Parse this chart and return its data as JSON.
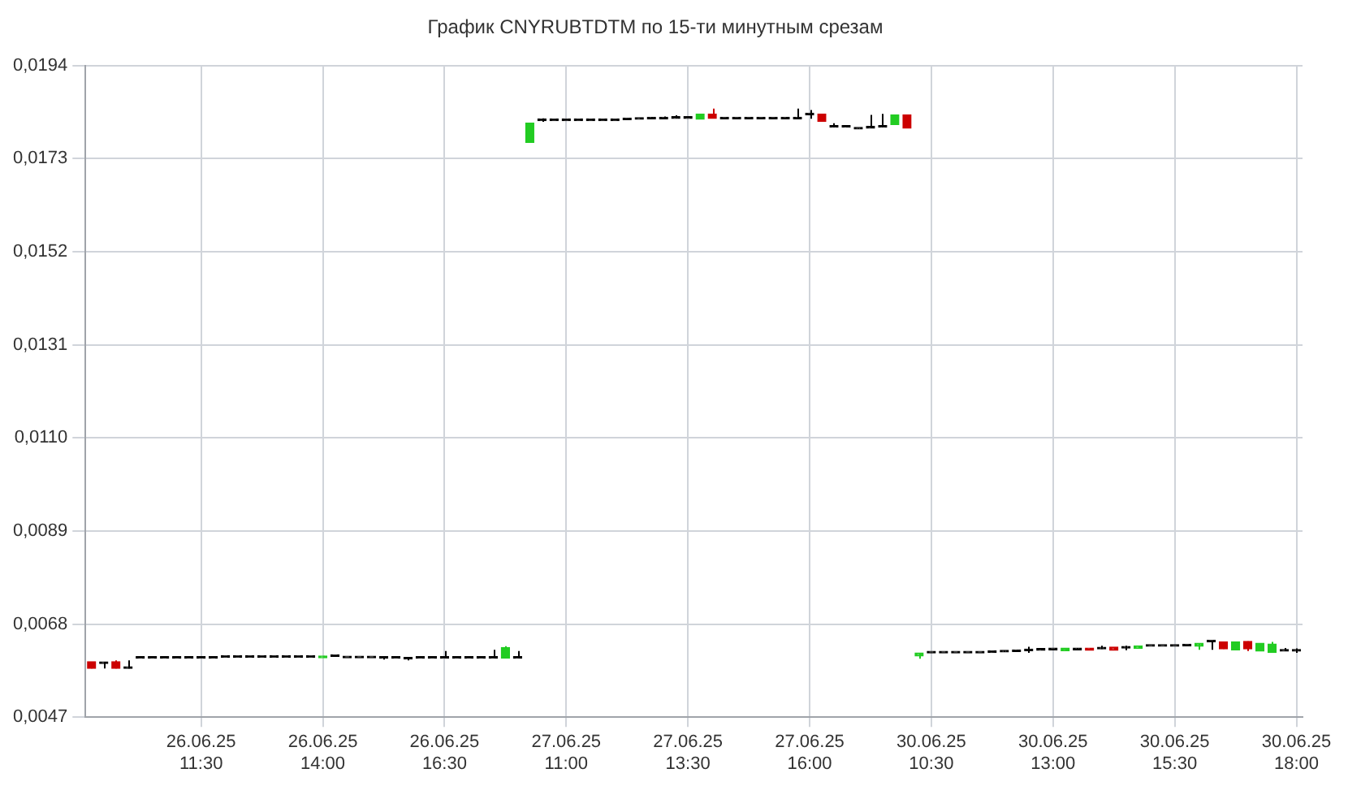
{
  "chart_data": {
    "type": "candlestick",
    "title": "График CNYRUBTDTM по 15-ти минутным срезам",
    "categories": [
      null,
      null,
      null,
      null,
      null,
      null,
      null,
      null,
      null,
      "26.06.25 11:30",
      null,
      null,
      null,
      null,
      null,
      null,
      null,
      null,
      null,
      "26.06.25 14:00",
      null,
      null,
      null,
      null,
      null,
      null,
      null,
      null,
      null,
      "26.06.25 16:30",
      null,
      null,
      null,
      null,
      null,
      null,
      null,
      null,
      null,
      "27.06.25 11:00",
      null,
      null,
      null,
      null,
      null,
      null,
      null,
      null,
      null,
      "27.06.25 13:30",
      null,
      null,
      null,
      null,
      null,
      null,
      null,
      null,
      null,
      "27.06.25 16:00",
      null,
      null,
      null,
      null,
      null,
      null,
      null,
      null,
      null,
      "30.06.25 10:30",
      null,
      null,
      null,
      null,
      null,
      null,
      null,
      null,
      null,
      "30.06.25 13:00",
      null,
      null,
      null,
      null,
      null,
      null,
      null,
      null,
      null,
      "30.06.25 15:30",
      null,
      null,
      null,
      null,
      null,
      null,
      null,
      null,
      null,
      "30.06.25 18:00"
    ],
    "ohlc": [
      [
        0.00595,
        0.00595,
        0.0058,
        0.0058
      ],
      [
        0.00591,
        0.00595,
        0.0058,
        0.00591
      ],
      [
        0.00595,
        0.00598,
        0.0058,
        0.0058
      ],
      [
        0.0058,
        0.00598,
        0.0058,
        0.0058
      ],
      [
        0.00603,
        0.00603,
        0.00603,
        0.00603
      ],
      [
        0.00603,
        0.00603,
        0.00603,
        0.00603
      ],
      [
        0.00603,
        0.00603,
        0.00603,
        0.00603
      ],
      [
        0.00603,
        0.00603,
        0.00603,
        0.00603
      ],
      [
        0.00603,
        0.00603,
        0.00603,
        0.00603
      ],
      [
        0.00603,
        0.00603,
        0.00603,
        0.00603
      ],
      [
        0.00603,
        0.00603,
        0.00603,
        0.00603
      ],
      [
        0.00605,
        0.00605,
        0.00605,
        0.00605
      ],
      [
        0.00605,
        0.00605,
        0.00605,
        0.00605
      ],
      [
        0.00605,
        0.00605,
        0.00605,
        0.00605
      ],
      [
        0.00605,
        0.00605,
        0.00605,
        0.00605
      ],
      [
        0.00605,
        0.00605,
        0.00605,
        0.00605
      ],
      [
        0.00605,
        0.00605,
        0.00605,
        0.00605
      ],
      [
        0.00605,
        0.00605,
        0.00605,
        0.00605
      ],
      [
        0.00605,
        0.00605,
        0.00605,
        0.00605
      ],
      [
        0.00604,
        0.00608,
        0.00604,
        0.00608
      ],
      [
        0.00607,
        0.00607,
        0.00607,
        0.00607
      ],
      [
        0.00604,
        0.00604,
        0.00604,
        0.00604
      ],
      [
        0.00604,
        0.00604,
        0.00604,
        0.00604
      ],
      [
        0.00604,
        0.00604,
        0.00604,
        0.00604
      ],
      [
        0.00603,
        0.00603,
        0.006,
        0.00603
      ],
      [
        0.00603,
        0.00603,
        0.00603,
        0.00603
      ],
      [
        0.00601,
        0.00603,
        0.00598,
        0.00601
      ],
      [
        0.00603,
        0.00603,
        0.00603,
        0.00603
      ],
      [
        0.00603,
        0.00603,
        0.00603,
        0.00603
      ],
      [
        0.00603,
        0.00619,
        0.00603,
        0.00603
      ],
      [
        0.00603,
        0.00603,
        0.00603,
        0.00603
      ],
      [
        0.00603,
        0.00603,
        0.00603,
        0.00603
      ],
      [
        0.00603,
        0.00603,
        0.00603,
        0.00603
      ],
      [
        0.00603,
        0.00622,
        0.00603,
        0.00603
      ],
      [
        0.00603,
        0.0063,
        0.00603,
        0.00627
      ],
      [
        0.00603,
        0.00619,
        0.00603,
        0.00603
      ],
      [
        0.01767,
        0.0181,
        0.01767,
        0.0181
      ],
      [
        0.01816,
        0.01821,
        0.01813,
        0.01816
      ],
      [
        0.01816,
        0.01816,
        0.01816,
        0.01816
      ],
      [
        0.01816,
        0.01816,
        0.01816,
        0.01816
      ],
      [
        0.01816,
        0.01816,
        0.01816,
        0.01816
      ],
      [
        0.01816,
        0.01816,
        0.01816,
        0.01816
      ],
      [
        0.01816,
        0.01816,
        0.01816,
        0.01816
      ],
      [
        0.01816,
        0.01816,
        0.01816,
        0.01816
      ],
      [
        0.01818,
        0.01821,
        0.01818,
        0.01818
      ],
      [
        0.01819,
        0.01822,
        0.01819,
        0.01819
      ],
      [
        0.0182,
        0.01824,
        0.0182,
        0.0182
      ],
      [
        0.0182,
        0.01825,
        0.0182,
        0.0182
      ],
      [
        0.01821,
        0.01828,
        0.01821,
        0.01821
      ],
      [
        0.01821,
        0.01821,
        0.01821,
        0.01821
      ],
      [
        0.01819,
        0.01831,
        0.01819,
        0.01831
      ],
      [
        0.01831,
        0.01843,
        0.01821,
        0.01821
      ],
      [
        0.0182,
        0.0182,
        0.0182,
        0.0182
      ],
      [
        0.0182,
        0.0182,
        0.0182,
        0.0182
      ],
      [
        0.0182,
        0.0182,
        0.0182,
        0.0182
      ],
      [
        0.0182,
        0.0182,
        0.0182,
        0.0182
      ],
      [
        0.0182,
        0.0182,
        0.0182,
        0.0182
      ],
      [
        0.0182,
        0.01824,
        0.0182,
        0.0182
      ],
      [
        0.0182,
        0.01843,
        0.0182,
        0.0182
      ],
      [
        0.01829,
        0.0184,
        0.0182,
        0.01829
      ],
      [
        0.01831,
        0.01831,
        0.01814,
        0.01814
      ],
      [
        0.01801,
        0.0181,
        0.01801,
        0.01801
      ],
      [
        0.01801,
        0.01805,
        0.01801,
        0.01801
      ],
      [
        0.01797,
        0.01799,
        0.01797,
        0.01797
      ],
      [
        0.01799,
        0.01829,
        0.01799,
        0.01799
      ],
      [
        0.01801,
        0.01831,
        0.01801,
        0.01801
      ],
      [
        0.01807,
        0.01829,
        0.01807,
        0.01829
      ],
      [
        0.01829,
        0.01829,
        0.01799,
        0.01799
      ],
      [
        0.00608,
        0.00615,
        0.00602,
        0.00615
      ],
      [
        0.00615,
        0.00615,
        0.00615,
        0.00615
      ],
      [
        0.00615,
        0.00615,
        0.00615,
        0.00615
      ],
      [
        0.00615,
        0.00615,
        0.00615,
        0.00615
      ],
      [
        0.00615,
        0.00615,
        0.00615,
        0.00615
      ],
      [
        0.00615,
        0.00615,
        0.00615,
        0.00615
      ],
      [
        0.00616,
        0.00619,
        0.00616,
        0.00616
      ],
      [
        0.00617,
        0.0062,
        0.00617,
        0.00617
      ],
      [
        0.00618,
        0.00622,
        0.00618,
        0.00618
      ],
      [
        0.0062,
        0.00629,
        0.00615,
        0.0062
      ],
      [
        0.00621,
        0.00624,
        0.00621,
        0.00621
      ],
      [
        0.00622,
        0.00622,
        0.00622,
        0.00622
      ],
      [
        0.0062,
        0.00626,
        0.0062,
        0.00626
      ],
      [
        0.00622,
        0.00626,
        0.00622,
        0.00622
      ],
      [
        0.00626,
        0.00626,
        0.00621,
        0.00621
      ],
      [
        0.00624,
        0.00631,
        0.00624,
        0.00624
      ],
      [
        0.00628,
        0.00628,
        0.00621,
        0.00621
      ],
      [
        0.00626,
        0.00631,
        0.00621,
        0.00626
      ],
      [
        0.00625,
        0.00631,
        0.00625,
        0.00631
      ],
      [
        0.0063,
        0.0063,
        0.0063,
        0.0063
      ],
      [
        0.0063,
        0.0063,
        0.0063,
        0.0063
      ],
      [
        0.0063,
        0.0063,
        0.0063,
        0.0063
      ],
      [
        0.00631,
        0.00631,
        0.00631,
        0.00631
      ],
      [
        0.0063,
        0.00637,
        0.00622,
        0.00637
      ],
      [
        0.0064,
        0.0064,
        0.00622,
        0.0064
      ],
      [
        0.0064,
        0.0064,
        0.00624,
        0.00624
      ],
      [
        0.00622,
        0.0064,
        0.00622,
        0.0064
      ],
      [
        0.00641,
        0.00641,
        0.00619,
        0.00624
      ],
      [
        0.00619,
        0.00637,
        0.00619,
        0.00637
      ],
      [
        0.00616,
        0.0064,
        0.00616,
        0.00635
      ],
      [
        0.00619,
        0.00626,
        0.00619,
        0.00619
      ],
      [
        0.00619,
        0.00625,
        0.00615,
        0.00619
      ]
    ],
    "colors": [
      "#cc0000",
      "#000000",
      "#cc0000",
      "#000000",
      "#000000",
      "#000000",
      "#000000",
      "#000000",
      "#000000",
      "#000000",
      "#000000",
      "#000000",
      "#000000",
      "#000000",
      "#000000",
      "#000000",
      "#000000",
      "#000000",
      "#000000",
      "#22cc22",
      "#000000",
      "#000000",
      "#000000",
      "#000000",
      "#000000",
      "#000000",
      "#000000",
      "#000000",
      "#000000",
      "#000000",
      "#000000",
      "#000000",
      "#000000",
      "#000000",
      "#22cc22",
      "#000000",
      "#22cc22",
      "#000000",
      "#000000",
      "#000000",
      "#000000",
      "#000000",
      "#000000",
      "#000000",
      "#000000",
      "#000000",
      "#000000",
      "#000000",
      "#000000",
      "#000000",
      "#22cc22",
      "#cc0000",
      "#000000",
      "#000000",
      "#000000",
      "#000000",
      "#000000",
      "#000000",
      "#000000",
      "#000000",
      "#cc0000",
      "#000000",
      "#000000",
      "#000000",
      "#000000",
      "#000000",
      "#22cc22",
      "#cc0000",
      "#22cc22",
      "#000000",
      "#000000",
      "#000000",
      "#000000",
      "#000000",
      "#000000",
      "#000000",
      "#000000",
      "#000000",
      "#000000",
      "#000000",
      "#22cc22",
      "#000000",
      "#cc0000",
      "#000000",
      "#cc0000",
      "#000000",
      "#22cc22",
      "#000000",
      "#000000",
      "#000000",
      "#000000",
      "#22cc22",
      "#000000",
      "#cc0000",
      "#22cc22",
      "#cc0000",
      "#22cc22",
      "#22cc22",
      "#000000",
      "#000000"
    ],
    "ylim": [
      0.0047,
      0.0194
    ],
    "yticks": [
      {
        "value": 0.0047,
        "label": "0,0047"
      },
      {
        "value": 0.0068,
        "label": "0,0068"
      },
      {
        "value": 0.0089,
        "label": "0,0089"
      },
      {
        "value": 0.011,
        "label": "0,0110"
      },
      {
        "value": 0.0131,
        "label": "0,0131"
      },
      {
        "value": 0.0152,
        "label": "0,0152"
      },
      {
        "value": 0.0173,
        "label": "0,0173"
      },
      {
        "value": 0.0194,
        "label": "0,0194"
      }
    ],
    "grid": true
  }
}
